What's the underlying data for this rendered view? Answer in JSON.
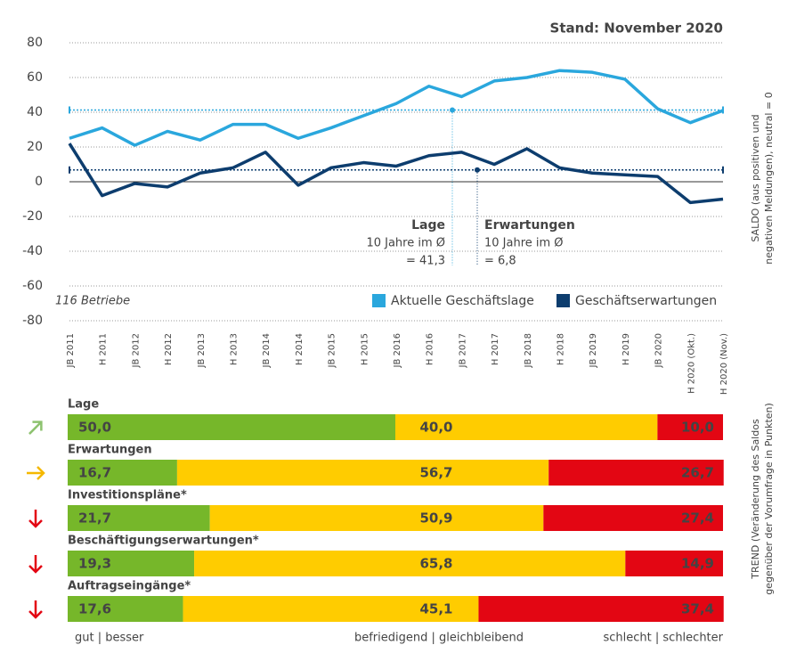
{
  "chart_data": [
    {
      "type": "line",
      "title": "Stand: November 2020",
      "note": "116 Betriebe",
      "y_axis_label": [
        "SALDO (aus positiven und",
        "negativen Meldungen), neutral = 0"
      ],
      "categories": [
        "JB 2011",
        "H 2011",
        "JB 2012",
        "H 2012",
        "JB 2013",
        "H 2013",
        "JB 2014",
        "H 2014",
        "JB 2015",
        "H 2015",
        "JB 2016",
        "H 2016",
        "JB 2017",
        "H 2017",
        "JB 2018",
        "H 2018",
        "JB 2019",
        "H 2019",
        "JB 2020",
        "H 2020 (Okt.)",
        "H 2020 (Nov.)"
      ],
      "series": [
        {
          "name": "Aktuelle Geschäftslage",
          "color": "#2aa7dd",
          "values": [
            25,
            31,
            21,
            29,
            24,
            33,
            33,
            25,
            31,
            38,
            45,
            55,
            49,
            58,
            60,
            64,
            63,
            59,
            42,
            34,
            41
          ]
        },
        {
          "name": "Geschäftserwartungen",
          "color": "#0d3d6e",
          "values": [
            22,
            -8,
            -1,
            -3,
            5,
            8,
            17,
            -2,
            8,
            11,
            9,
            15,
            17,
            10,
            19,
            8,
            5,
            4,
            3,
            -12,
            -10
          ]
        }
      ],
      "annotations": [
        {
          "title": "Lage",
          "text": "10 Jahre im Ø",
          "value": 41.3,
          "label": "= 41,3",
          "color": "#2aa7dd"
        },
        {
          "title": "Erwartungen",
          "text": "10 Jahre im Ø",
          "value": 6.8,
          "label": "= 6,8",
          "color": "#0d3d6e"
        }
      ],
      "ylim": [
        -80,
        80
      ],
      "yticks": [
        -80,
        -60,
        -40,
        -20,
        0,
        20,
        40,
        60,
        80
      ],
      "grid": true
    },
    {
      "type": "stacked-bar",
      "y_axis_label": [
        "TREND (Veränderung des Saldos",
        "gegenüber der Vorumfrage in Punkten)"
      ],
      "categories": [
        "Lage",
        "Erwartungen",
        "Investitionspläne*",
        "Beschäftigungserwartungen*",
        "Auftragseingänge*"
      ],
      "trend": [
        "up-right",
        "right",
        "down",
        "down",
        "down"
      ],
      "trend_colors": {
        "up-right": "#8dc26f",
        "right": "#f5b800",
        "down": "#e30613"
      },
      "xlim": [
        0,
        100
      ],
      "series": [
        {
          "name": "gut | besser",
          "color": "#76b72a",
          "values": [
            50.0,
            16.7,
            21.7,
            19.3,
            17.6
          ],
          "value_labels": [
            "50,0",
            "16,7",
            "21,7",
            "19,3",
            "17,6"
          ]
        },
        {
          "name": "befriedigend | gleichbleibend",
          "color": "#ffcc00",
          "values": [
            40.0,
            56.7,
            50.9,
            65.8,
            45.1
          ],
          "value_labels": [
            "40,0",
            "56,7",
            "50,9",
            "65,8",
            "45,1"
          ]
        },
        {
          "name": "schlecht | schlechter",
          "color": "#e30613",
          "values": [
            10.0,
            26.7,
            27.4,
            14.9,
            37.4
          ],
          "value_labels": [
            "10,0",
            "26,7",
            "27,4",
            "14,9",
            "37,4"
          ]
        }
      ]
    }
  ]
}
